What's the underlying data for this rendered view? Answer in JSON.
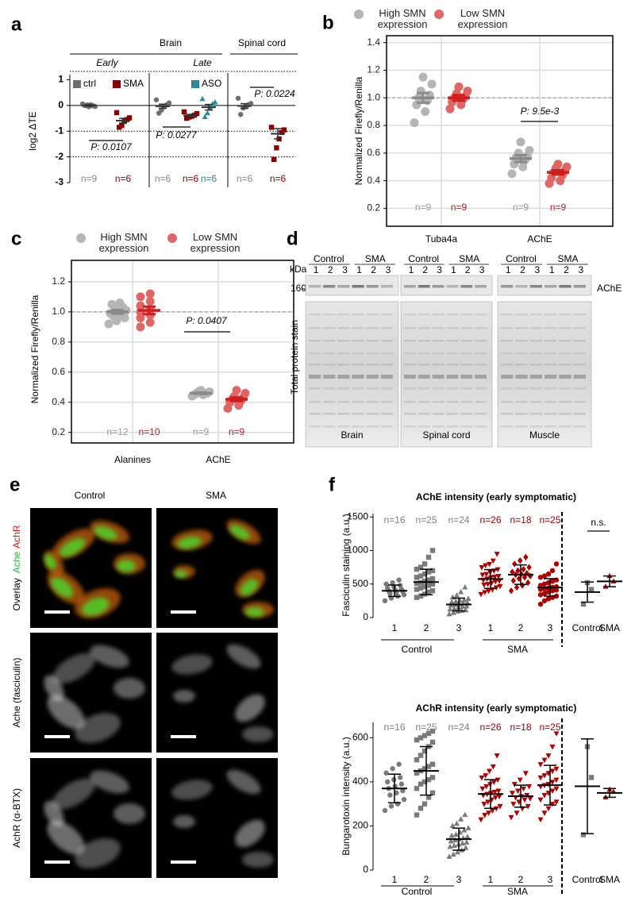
{
  "chart_data": [
    {
      "panel": "a",
      "type": "strip",
      "ylabel": "log2 ΔTE",
      "ylim": [
        -3,
        1.2
      ],
      "yticks": [
        -3,
        -2,
        -1,
        0,
        1
      ],
      "solid_lines": [
        0
      ],
      "dotted_lines": [
        -1,
        -2
      ],
      "regions": [
        "Brain",
        "Spinal cord"
      ],
      "phases": [
        "Early",
        "Late"
      ],
      "legend": [
        {
          "name": "ctrl",
          "color": "#6e6e6e"
        },
        {
          "name": "SMA",
          "color": "#8b0000"
        },
        {
          "name": "ASO",
          "color": "#2a8a9a"
        }
      ],
      "groups": [
        {
          "marker": "circle",
          "color": "#6e6e6e",
          "line_color": "#333333",
          "label_color": "#888888",
          "values": [
            0.06,
            0.03,
            0.01,
            0.0,
            -0.01,
            -0.02,
            0.02,
            -0.04,
            -0.05
          ],
          "mean": 0,
          "error": 0.03,
          "n_label": "n=9"
        },
        {
          "marker": "square",
          "color": "#8b0000",
          "line_color": "#333333",
          "label_color": "#8b0000",
          "values": [
            -0.28,
            -0.48,
            -0.55,
            -0.62,
            -0.78,
            -0.85
          ],
          "mean": -0.59,
          "error": 0.09,
          "n_label": "n=6"
        },
        {
          "marker": "circle",
          "color": "#6e6e6e",
          "line_color": "#333333",
          "label_color": "#888888",
          "values": [
            0.22,
            0.1,
            0.02,
            -0.05,
            -0.18,
            -0.3
          ],
          "mean": -0.03,
          "error": 0.08,
          "n_label": "n=6"
        },
        {
          "marker": "square",
          "color": "#8b0000",
          "line_color": "#333333",
          "label_color": "#8b0000",
          "values": [
            -0.25,
            -0.32,
            -0.38,
            -0.42,
            -0.45,
            -0.5
          ],
          "mean": -0.39,
          "error": 0.04,
          "n_label": "n=6"
        },
        {
          "marker": "triangle",
          "color": "#2a8a9a",
          "line_color": "#333333",
          "label_color": "#2a8a9a",
          "values": [
            0.25,
            0.12,
            0.05,
            -0.08,
            -0.3,
            -0.45
          ],
          "mean": -0.07,
          "error": 0.11,
          "n_label": "n=6"
        },
        {
          "marker": "circle",
          "color": "#6e6e6e",
          "line_color": "#333333",
          "label_color": "#888888",
          "values": [
            0.28,
            0.08,
            0.02,
            -0.05,
            -0.1,
            -0.35
          ],
          "mean": -0.02,
          "error": 0.09,
          "n_label": "n=6"
        },
        {
          "marker": "square",
          "color": "#8b0000",
          "line_color": "#333333",
          "label_color": "#8b0000",
          "values": [
            -0.85,
            -0.95,
            -1.05,
            -1.3,
            -1.65,
            -2.1
          ],
          "mean": -1.1,
          "error": 0.2,
          "n_label": "n=6"
        }
      ],
      "comparisons": [
        {
          "label": "P: 0.0107"
        },
        {
          "label": "P: 0.0277"
        },
        {
          "label": "P: 0.0224"
        }
      ]
    },
    {
      "panel": "b",
      "type": "strip",
      "ylabel": "Normalized Firefly/Renilla",
      "ylim": [
        0.07,
        1.45
      ],
      "yticks": [
        0.2,
        0.4,
        0.6,
        0.8,
        {
          "value": 1,
          "label": "1.0"
        },
        1.2,
        1.4
      ],
      "grid": true,
      "dashed_lines": [
        1
      ],
      "categories": [
        "Tuba4a",
        "AChE"
      ],
      "legend": [
        {
          "name": "High SMN expression",
          "color": "#b5b5b5"
        },
        {
          "name": "Low SMN expression",
          "color": "#e06666"
        }
      ],
      "groups": [
        {
          "marker": "circle",
          "color": "#b5b5b5",
          "line_color": "#8a8a8a",
          "label_color": "#999999",
          "values": [
            0.82,
            0.9,
            0.95,
            0.98,
            1.0,
            1.02,
            1.05,
            1.1,
            1.15
          ],
          "mean": 1.0,
          "error": 0.035,
          "n_label": "n=9"
        },
        {
          "marker": "circle",
          "color": "#e06666",
          "line_color": "#cc1f1f",
          "label_color": "#b22222",
          "values": [
            0.92,
            0.95,
            0.97,
            0.99,
            1.0,
            1.01,
            1.03,
            1.05,
            1.08
          ],
          "mean": 1.0,
          "error": 0.02,
          "n_label": "n=9"
        },
        {
          "marker": "circle",
          "color": "#b5b5b5",
          "line_color": "#8a8a8a",
          "label_color": "#999999",
          "values": [
            0.45,
            0.5,
            0.52,
            0.55,
            0.57,
            0.58,
            0.6,
            0.62,
            0.68
          ],
          "mean": 0.56,
          "error": 0.025,
          "n_label": "n=9"
        },
        {
          "marker": "circle",
          "color": "#e06666",
          "line_color": "#cc1f1f",
          "label_color": "#b22222",
          "values": [
            0.38,
            0.4,
            0.42,
            0.44,
            0.46,
            0.47,
            0.49,
            0.5,
            0.52
          ],
          "mean": 0.46,
          "error": 0.015,
          "n_label": "n=9"
        }
      ],
      "comparisons": [
        {
          "label": "P: 9.5e-3"
        }
      ]
    },
    {
      "panel": "c",
      "type": "strip",
      "ylabel": "Normalized Firefly/Renilla",
      "ylim": [
        0.13,
        1.342
      ],
      "yticks": [
        0.2,
        0.4,
        0.6,
        0.8,
        {
          "value": 1,
          "label": "1.0"
        },
        1.2
      ],
      "grid": true,
      "dashed_lines": [
        1
      ],
      "categories": [
        "Alanines",
        "AChE"
      ],
      "legend": [
        {
          "name": "High SMN expression",
          "color": "#b5b5b5"
        },
        {
          "name": "Low SMN expression",
          "color": "#e06666"
        }
      ],
      "groups": [
        {
          "marker": "circle",
          "color": "#b5b5b5",
          "line_color": "#8a8a8a",
          "label_color": "#999999",
          "values": [
            0.92,
            0.94,
            0.96,
            0.97,
            0.98,
            0.99,
            1.0,
            1.01,
            1.02,
            1.03,
            1.05,
            1.06
          ],
          "mean": 1.0,
          "error": 0.012,
          "n_label": "n=12"
        },
        {
          "marker": "circle",
          "color": "#e06666",
          "line_color": "#cc1f1f",
          "label_color": "#b22222",
          "values": [
            0.9,
            0.93,
            0.96,
            0.98,
            1.0,
            1.02,
            1.04,
            1.07,
            1.1,
            1.12
          ],
          "mean": 1.01,
          "error": 0.025,
          "n_label": "n=10"
        },
        {
          "marker": "circle",
          "color": "#b5b5b5",
          "line_color": "#8a8a8a",
          "label_color": "#999999",
          "values": [
            0.44,
            0.45,
            0.45,
            0.46,
            0.46,
            0.46,
            0.47,
            0.47,
            0.48
          ],
          "mean": 0.46,
          "error": 0.005,
          "n_label": "n=9"
        },
        {
          "marker": "circle",
          "color": "#e06666",
          "line_color": "#cc1f1f",
          "label_color": "#b22222",
          "values": [
            0.36,
            0.38,
            0.4,
            0.41,
            0.42,
            0.43,
            0.44,
            0.46,
            0.48
          ],
          "mean": 0.42,
          "error": 0.012,
          "n_label": "n=9"
        }
      ],
      "comparisons": [
        {
          "label": "P: 0.0407"
        }
      ]
    },
    {
      "panel": "f",
      "type": "strip",
      "title": "AChE intensity (early symptomatic)",
      "ylabel": "Fasciculin staining (a.u.)",
      "ylim": [
        0,
        1550
      ],
      "yticks": [
        0,
        500,
        1000,
        1500
      ],
      "categories": [
        "1",
        "2",
        "3",
        "1",
        "2",
        "3",
        "Control",
        "SMA"
      ],
      "bracket_labels": [
        "Control",
        "SMA"
      ],
      "groups": [
        {
          "marker": "circle",
          "color": "#7a7a7a",
          "line_color": "#000000",
          "label_color": "#808080",
          "values": [
            250,
            290,
            320,
            340,
            360,
            380,
            390,
            400,
            410,
            420,
            440,
            460,
            480,
            500,
            520,
            560
          ],
          "mean": 400,
          "error": 85,
          "n_label": "n=16"
        },
        {
          "marker": "square",
          "color": "#7a7a7a",
          "line_color": "#000000",
          "label_color": "#808080",
          "values": [
            300,
            320,
            350,
            380,
            400,
            420,
            440,
            460,
            480,
            500,
            510,
            520,
            540,
            560,
            580,
            600,
            620,
            650,
            680,
            700,
            720,
            750,
            800,
            900,
            1000
          ],
          "mean": 530,
          "error": 190,
          "n_label": "n=25"
        },
        {
          "marker": "triangle",
          "color": "#7a7a7a",
          "line_color": "#000000",
          "label_color": "#808080",
          "values": [
            50,
            70,
            90,
            100,
            110,
            120,
            130,
            150,
            160,
            170,
            180,
            190,
            200,
            210,
            220,
            230,
            240,
            250,
            260,
            280,
            300,
            330,
            380,
            450
          ],
          "mean": 195,
          "error": 95,
          "n_label": "n=24"
        },
        {
          "marker": "triangle-down",
          "color": "#b00000",
          "line_color": "#000000",
          "label_color": "#a00000",
          "values": [
            350,
            380,
            400,
            420,
            450,
            470,
            490,
            500,
            520,
            540,
            550,
            560,
            580,
            600,
            610,
            620,
            640,
            650,
            680,
            700,
            720,
            750,
            780,
            800,
            850,
            950
          ],
          "mean": 575,
          "error": 140,
          "n_label": "n=26"
        },
        {
          "marker": "diamond",
          "color": "#b00000",
          "line_color": "#000000",
          "label_color": "#a00000",
          "values": [
            400,
            450,
            480,
            520,
            550,
            580,
            600,
            620,
            640,
            650,
            660,
            680,
            700,
            720,
            750,
            800,
            850,
            900
          ],
          "mean": 640,
          "error": 145,
          "n_label": "n=18"
        },
        {
          "marker": "circle",
          "color": "#b00000",
          "line_color": "#000000",
          "label_color": "#a00000",
          "values": [
            200,
            250,
            280,
            300,
            320,
            340,
            360,
            380,
            400,
            410,
            420,
            430,
            440,
            450,
            460,
            480,
            500,
            520,
            540,
            560,
            600,
            620,
            650,
            700,
            800
          ],
          "mean": 450,
          "error": 130,
          "n_label": "n=25"
        },
        {
          "marker": "square",
          "color": "#7a7a7a",
          "line_color": "#000000",
          "values": [
            200,
            420,
            520
          ],
          "mean": 380,
          "error": 150
        },
        {
          "marker": "triangle",
          "color": "#b00000",
          "line_color": "#000000",
          "values": [
            460,
            540,
            620
          ],
          "mean": 540,
          "error": 80
        }
      ],
      "comparisons": [
        {
          "label": "n.s."
        }
      ]
    },
    {
      "type": "strip",
      "title": "AChR intensity (early symptomatic)",
      "ylabel": "Bungarotoxin intensity (a.u.)",
      "ylim": [
        0,
        670
      ],
      "yticks": [
        0,
        200,
        400,
        600
      ],
      "categories": [
        "1",
        "2",
        "3",
        "1",
        "2",
        "3",
        "Control",
        "SMA"
      ],
      "bracket_labels": [
        "Control",
        "SMA"
      ],
      "groups": [
        {
          "marker": "circle",
          "color": "#7a7a7a",
          "line_color": "#000000",
          "label_color": "#808080",
          "values": [
            270,
            290,
            300,
            320,
            340,
            350,
            360,
            370,
            380,
            390,
            400,
            410,
            420,
            440,
            460,
            480
          ],
          "mean": 370,
          "error": 65,
          "n_label": "n=16"
        },
        {
          "marker": "square",
          "color": "#7a7a7a",
          "line_color": "#000000",
          "label_color": "#808080",
          "values": [
            250,
            280,
            300,
            330,
            350,
            370,
            390,
            400,
            410,
            420,
            440,
            450,
            460,
            470,
            480,
            500,
            520,
            540,
            560,
            580,
            590,
            600,
            610,
            620,
            630
          ],
          "mean": 450,
          "error": 110,
          "n_label": "n=25"
        },
        {
          "marker": "triangle",
          "color": "#7a7a7a",
          "line_color": "#000000",
          "label_color": "#808080",
          "values": [
            60,
            70,
            80,
            90,
            100,
            105,
            110,
            115,
            120,
            125,
            130,
            135,
            140,
            145,
            150,
            155,
            160,
            170,
            180,
            190,
            200,
            210,
            230,
            250
          ],
          "mean": 140,
          "error": 50,
          "n_label": "n=24"
        },
        {
          "marker": "triangle-down",
          "color": "#b00000",
          "line_color": "#000000",
          "label_color": "#a00000",
          "values": [
            230,
            250,
            260,
            270,
            280,
            290,
            300,
            310,
            320,
            330,
            335,
            340,
            345,
            350,
            355,
            360,
            370,
            380,
            390,
            400,
            410,
            420,
            430,
            450,
            470,
            520
          ],
          "mean": 345,
          "error": 65,
          "n_label": "n=26"
        },
        {
          "marker": "triangle-down",
          "color": "#b00000",
          "line_color": "#000000",
          "label_color": "#a00000",
          "values": [
            240,
            260,
            280,
            290,
            300,
            310,
            320,
            325,
            330,
            335,
            340,
            350,
            360,
            370,
            380,
            390,
            410,
            440
          ],
          "mean": 335,
          "error": 50,
          "n_label": "n=18"
        },
        {
          "marker": "triangle-down",
          "color": "#b00000",
          "line_color": "#000000",
          "label_color": "#a00000",
          "values": [
            230,
            260,
            280,
            300,
            310,
            320,
            340,
            350,
            360,
            370,
            380,
            385,
            390,
            400,
            410,
            420,
            430,
            440,
            450,
            460,
            480,
            500,
            520,
            560,
            620
          ],
          "mean": 385,
          "error": 90,
          "n_label": "n=25"
        },
        {
          "marker": "square",
          "color": "#7a7a7a",
          "line_color": "#000000",
          "values": [
            160,
            420,
            560
          ],
          "mean": 380,
          "error": 215
        },
        {
          "marker": "triangle",
          "color": "#b00000",
          "line_color": "#000000",
          "values": [
            330,
            355,
            365
          ],
          "mean": 350,
          "error": 20
        }
      ]
    }
  ],
  "blot": {
    "panel": "d",
    "groups": [
      "Control",
      "SMA"
    ],
    "lanes": [
      "1",
      "2",
      "3"
    ],
    "unit": "kDa",
    "marker_size": "160",
    "band_label": "AChE",
    "stain_label": "Total protein stain",
    "tissues": [
      "Brain",
      "Spinal cord",
      "Muscle"
    ]
  },
  "micrographs": {
    "panel": "e",
    "columns": [
      "Control",
      "SMA"
    ],
    "rows": [
      {
        "label": "Overlay",
        "stain1": "Ache",
        "stain2": "AchR"
      },
      {
        "label": "Ache (fasciculin)"
      },
      {
        "label": "AchR (α-BTX)"
      }
    ]
  }
}
